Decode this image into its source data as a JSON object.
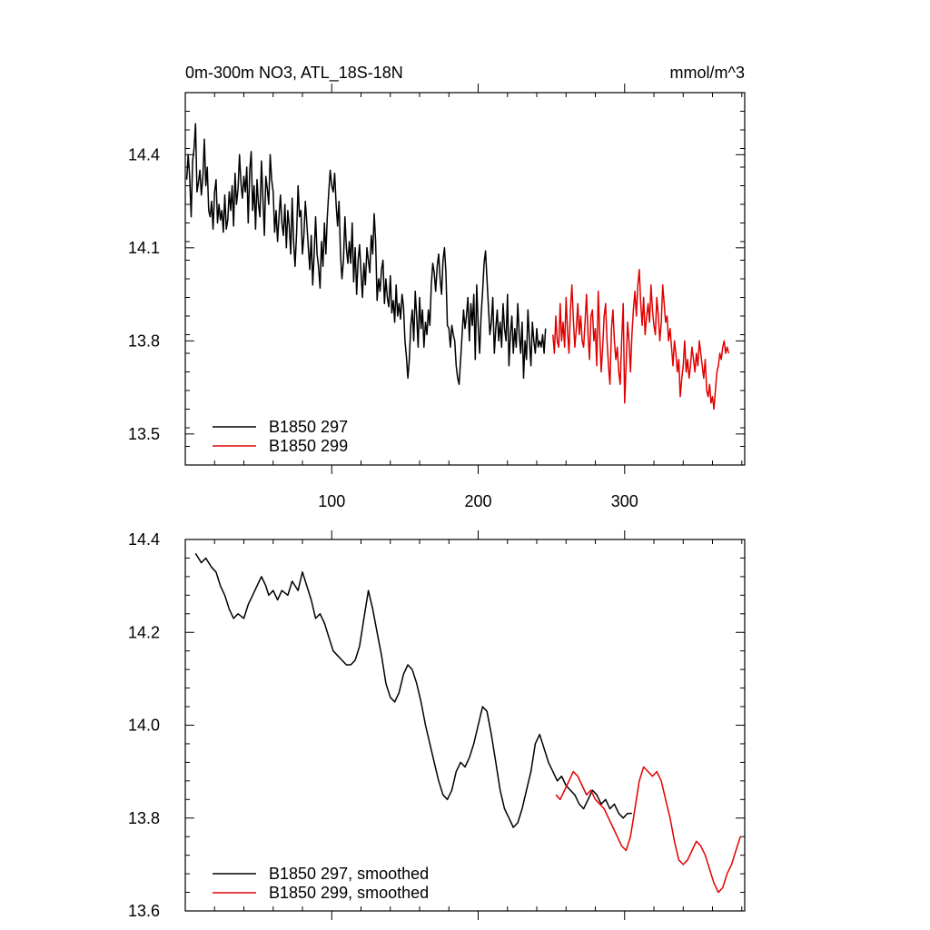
{
  "chart_data": [
    {
      "type": "line",
      "title": "0m-300m NO3, ATL_18S-18N",
      "units_label": "mmol/m^3",
      "xlim": [
        0,
        382
      ],
      "ylim": [
        13.4,
        14.6
      ],
      "xticks": [
        100,
        200,
        300
      ],
      "xtick_labels": [
        "100",
        "200",
        "300"
      ],
      "yticks": [
        13.5,
        13.8,
        14.1,
        14.4
      ],
      "ytick_labels": [
        "13.5",
        "13.8",
        "14.1",
        "14.4"
      ],
      "legend_position": "bottom-left",
      "series": [
        {
          "name": "B1850 297",
          "color": "#000000",
          "x_start": 1,
          "values": [
            14.32,
            14.4,
            14.33,
            14.2,
            14.38,
            14.42,
            14.5,
            14.28,
            14.31,
            14.35,
            14.27,
            14.33,
            14.45,
            14.3,
            14.36,
            14.22,
            14.2,
            14.25,
            14.16,
            14.28,
            14.32,
            14.18,
            14.24,
            14.19,
            14.22,
            14.15,
            14.27,
            14.16,
            14.19,
            14.28,
            14.22,
            14.3,
            14.17,
            14.34,
            14.24,
            14.29,
            14.4,
            14.31,
            14.26,
            14.33,
            14.28,
            14.36,
            14.18,
            14.35,
            14.41,
            14.22,
            14.3,
            14.16,
            14.32,
            14.24,
            14.2,
            14.38,
            14.26,
            14.14,
            14.33,
            14.29,
            14.24,
            14.4,
            14.32,
            14.28,
            14.15,
            14.22,
            14.12,
            14.2,
            14.27,
            14.18,
            14.14,
            14.24,
            14.1,
            14.22,
            14.17,
            14.08,
            14.26,
            14.12,
            14.04,
            14.15,
            14.3,
            14.2,
            14.22,
            14.08,
            14.14,
            14.25,
            14.18,
            14.1,
            14.03,
            14.14,
            13.98,
            14.08,
            14.2,
            14.08,
            14.04,
            13.97,
            14.12,
            14.04,
            14.18,
            14.08,
            14.2,
            14.28,
            14.35,
            14.3,
            14.28,
            14.34,
            14.24,
            14.17,
            14.25,
            14.08,
            14.0,
            14.06,
            14.2,
            14.1,
            14.05,
            14.12,
            14.05,
            14.18,
            13.99,
            14.1,
            13.95,
            14.06,
            14.11,
            14.02,
            13.94,
            14.05,
            13.98,
            14.1,
            14.06,
            14.02,
            14.14,
            14.08,
            14.21,
            14.12,
            13.93,
            14.0,
            13.96,
            14.03,
            14.06,
            13.92,
            14.0,
            13.94,
            13.91,
            14.01,
            13.89,
            13.93,
            13.86,
            13.98,
            13.88,
            13.92,
            13.87,
            13.95,
            13.91,
            13.8,
            13.75,
            13.68,
            13.74,
            13.85,
            13.9,
            13.8,
            13.96,
            13.88,
            13.78,
            13.94,
            13.84,
            13.9,
            13.78,
            13.86,
            13.82,
            13.9,
            13.85,
            13.98,
            14.05,
            14.02,
            13.96,
            14.04,
            14.08,
            14.0,
            13.95,
            14.06,
            14.1,
            14.02,
            13.85,
            13.84,
            13.78,
            13.85,
            13.82,
            13.8,
            13.72,
            13.68,
            13.66,
            13.74,
            13.82,
            13.9,
            13.84,
            13.88,
            13.94,
            13.8,
            13.92,
            13.85,
            13.95,
            13.74,
            13.98,
            13.85,
            13.76,
            13.88,
            13.96,
            14.05,
            14.09,
            14.0,
            13.91,
            13.82,
            13.86,
            13.94,
            13.76,
            13.84,
            13.9,
            13.8,
            13.86,
            13.78,
            13.92,
            13.84,
            13.8,
            13.95,
            13.72,
            13.82,
            13.88,
            13.76,
            13.84,
            13.78,
            13.92,
            13.82,
            13.76,
            13.86,
            13.68,
            13.8,
            13.74,
            13.9,
            13.8,
            13.72,
            13.86,
            13.8,
            13.76,
            13.84,
            13.78,
            13.8,
            13.78,
            13.82,
            13.76,
            13.84
          ]
        },
        {
          "name": "B1850 299",
          "color": "#e00000",
          "x_start": 251,
          "values": [
            13.82,
            13.76,
            13.88,
            13.8,
            13.78,
            13.92,
            13.8,
            13.86,
            13.78,
            13.94,
            13.83,
            13.76,
            13.9,
            13.98,
            13.87,
            13.78,
            13.84,
            13.92,
            13.82,
            13.88,
            13.8,
            13.78,
            13.86,
            13.95,
            13.82,
            13.74,
            13.88,
            13.9,
            13.8,
            13.84,
            13.72,
            13.96,
            13.82,
            13.7,
            13.78,
            13.88,
            13.92,
            13.8,
            13.72,
            13.66,
            13.84,
            13.9,
            13.8,
            13.74,
            13.78,
            13.7,
            13.66,
            13.8,
            13.92,
            13.6,
            13.72,
            13.86,
            13.8,
            13.7,
            13.82,
            13.9,
            13.96,
            13.88,
            13.98,
            14.03,
            13.92,
            13.85,
            13.94,
            13.82,
            13.88,
            13.92,
            13.86,
            13.98,
            13.9,
            13.85,
            13.82,
            13.94,
            13.88,
            13.8,
            13.86,
            13.98,
            13.92,
            13.86,
            13.88,
            13.8,
            13.84,
            13.78,
            13.72,
            13.8,
            13.76,
            13.7,
            13.74,
            13.62,
            13.68,
            13.72,
            13.8,
            13.7,
            13.74,
            13.68,
            13.72,
            13.78,
            13.74,
            13.7,
            13.76,
            13.72,
            13.8,
            13.76,
            13.72,
            13.68,
            13.74,
            13.64,
            13.62,
            13.66,
            13.6,
            13.62,
            13.58,
            13.64,
            13.7,
            13.72,
            13.76,
            13.74,
            13.78,
            13.8,
            13.76,
            13.78,
            13.76
          ]
        }
      ]
    },
    {
      "type": "line",
      "xlim": [
        0,
        382
      ],
      "ylim": [
        13.6,
        14.4
      ],
      "xticks": [
        100,
        200,
        300
      ],
      "yticks": [
        13.6,
        13.8,
        14.0,
        14.2,
        14.4
      ],
      "ytick_labels": [
        "13.6",
        "13.8",
        "14.0",
        "14.2",
        "14.4"
      ],
      "legend_position": "bottom-left",
      "series": [
        {
          "name": "B1850 297, smoothed",
          "color": "#000000",
          "x": [
            7,
            11,
            14,
            18,
            21,
            24,
            27,
            30,
            33,
            36,
            40,
            43,
            46,
            49,
            52,
            55,
            57,
            60,
            63,
            66,
            70,
            73,
            77,
            80,
            83,
            86,
            89,
            92,
            95,
            98,
            101,
            104,
            107,
            110,
            113,
            116,
            119,
            122,
            125,
            128,
            131,
            134,
            137,
            140,
            143,
            146,
            149,
            152,
            155,
            158,
            161,
            164,
            167,
            170,
            173,
            176,
            179,
            182,
            185,
            188,
            191,
            194,
            197,
            200,
            203,
            206,
            209,
            212,
            215,
            218,
            221,
            224,
            227,
            230,
            233,
            236,
            239,
            242,
            245,
            248,
            251,
            254,
            257,
            260,
            263,
            266,
            269,
            272,
            275,
            278,
            281,
            284,
            287,
            290,
            293,
            296,
            299,
            302,
            305
          ],
          "values": [
            14.37,
            14.35,
            14.36,
            14.34,
            14.33,
            14.3,
            14.28,
            14.25,
            14.23,
            14.24,
            14.23,
            14.26,
            14.28,
            14.3,
            14.32,
            14.3,
            14.28,
            14.29,
            14.27,
            14.29,
            14.28,
            14.31,
            14.29,
            14.33,
            14.3,
            14.27,
            14.23,
            14.24,
            14.22,
            14.19,
            14.16,
            14.15,
            14.14,
            14.13,
            14.13,
            14.14,
            14.17,
            14.23,
            14.29,
            14.25,
            14.2,
            14.15,
            14.09,
            14.06,
            14.05,
            14.07,
            14.11,
            14.13,
            14.12,
            14.09,
            14.05,
            14.0,
            13.96,
            13.92,
            13.88,
            13.85,
            13.84,
            13.86,
            13.9,
            13.92,
            13.91,
            13.93,
            13.96,
            14.0,
            14.04,
            14.03,
            13.98,
            13.92,
            13.86,
            13.82,
            13.8,
            13.78,
            13.79,
            13.82,
            13.86,
            13.9,
            13.96,
            13.98,
            13.95,
            13.92,
            13.9,
            13.88,
            13.89,
            13.87,
            13.86,
            13.85,
            13.83,
            13.82,
            13.84,
            13.86,
            13.85,
            13.83,
            13.84,
            13.82,
            13.83,
            13.81,
            13.8,
            13.81,
            13.81
          ]
        },
        {
          "name": "B1850 299, smoothed",
          "color": "#e00000",
          "x": [
            253,
            256,
            259,
            262,
            265,
            268,
            271,
            274,
            277,
            280,
            283,
            286,
            289,
            292,
            295,
            298,
            301,
            304,
            307,
            310,
            313,
            316,
            319,
            322,
            325,
            328,
            331,
            334,
            337,
            340,
            343,
            346,
            349,
            352,
            355,
            358,
            361,
            364,
            367,
            370,
            373,
            376,
            379
          ],
          "values": [
            13.85,
            13.84,
            13.86,
            13.88,
            13.9,
            13.89,
            13.87,
            13.85,
            13.86,
            13.84,
            13.83,
            13.82,
            13.8,
            13.78,
            13.76,
            13.74,
            13.73,
            13.76,
            13.82,
            13.88,
            13.91,
            13.9,
            13.89,
            13.9,
            13.88,
            13.84,
            13.8,
            13.75,
            13.71,
            13.7,
            13.71,
            13.73,
            13.75,
            13.74,
            13.72,
            13.69,
            13.66,
            13.64,
            13.65,
            13.68,
            13.7,
            13.73,
            13.76
          ]
        }
      ]
    }
  ]
}
